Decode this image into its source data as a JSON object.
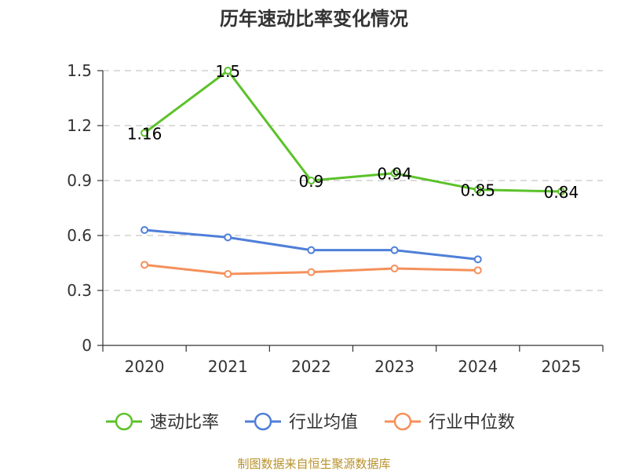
{
  "chart_data": {
    "type": "line",
    "title": "历年速动比率变化情况",
    "categories": [
      "2020",
      "2021",
      "2022",
      "2023",
      "2024",
      "2025"
    ],
    "ylim": [
      0,
      1.5
    ],
    "yticks": [
      0,
      0.3,
      0.6,
      0.9,
      1.2,
      1.5
    ],
    "ytick_labels": [
      "0",
      "0.3",
      "0.6",
      "0.9",
      "1.2",
      "1.5"
    ],
    "grid": true,
    "legend_position": "bottom",
    "series": [
      {
        "name": "速动比率",
        "color": "#5cc22a",
        "values": [
          1.16,
          1.5,
          0.9,
          0.94,
          0.85,
          0.84
        ],
        "labels": [
          "1.16",
          "1.5",
          "0.9",
          "0.94",
          "0.85",
          "0.84"
        ]
      },
      {
        "name": "行业均值",
        "color": "#4f7fd9",
        "values": [
          0.63,
          0.59,
          0.52,
          0.52,
          0.47,
          null
        ]
      },
      {
        "name": "行业中位数",
        "color": "#f5905b",
        "values": [
          0.44,
          0.39,
          0.4,
          0.42,
          0.41,
          null
        ]
      }
    ],
    "source": "制图数据来自恒生聚源数据库"
  }
}
